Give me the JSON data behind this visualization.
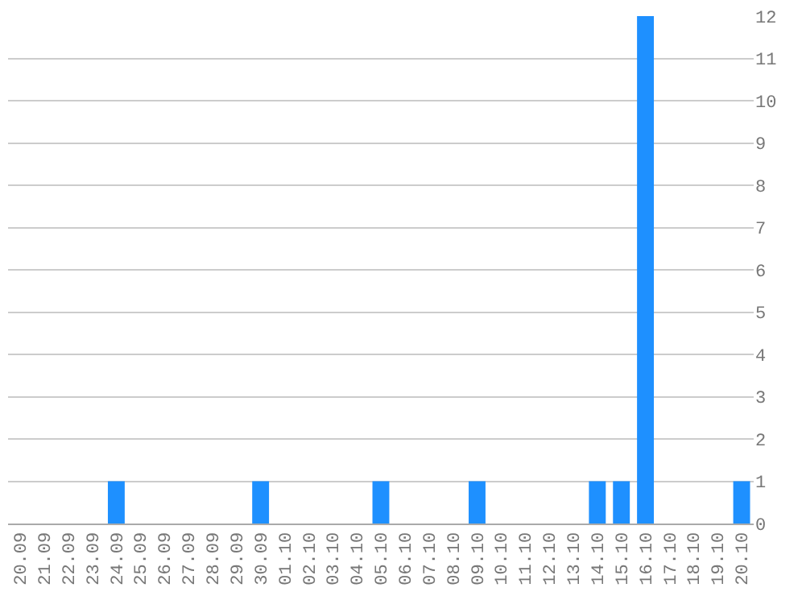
{
  "chart_data": {
    "type": "bar",
    "categories": [
      "20.09",
      "21.09",
      "22.09",
      "23.09",
      "24.09",
      "25.09",
      "26.09",
      "27.09",
      "28.09",
      "29.09",
      "30.09",
      "01.10",
      "02.10",
      "03.10",
      "04.10",
      "05.10",
      "06.10",
      "07.10",
      "08.10",
      "09.10",
      "10.10",
      "11.10",
      "12.10",
      "13.10",
      "14.10",
      "15.10",
      "16.10",
      "17.10",
      "18.10",
      "19.10",
      "20.10"
    ],
    "values": [
      0,
      0,
      0,
      0,
      1,
      0,
      0,
      0,
      0,
      0,
      1,
      0,
      0,
      0,
      0,
      1,
      0,
      0,
      0,
      1,
      0,
      0,
      0,
      0,
      1,
      1,
      12,
      0,
      0,
      0,
      1
    ],
    "color": "#1e90ff",
    "ylim": [
      0,
      12
    ],
    "yticks": [
      0,
      1,
      2,
      3,
      4,
      5,
      6,
      7,
      8,
      9,
      10,
      11,
      12
    ],
    "grid": "y",
    "legend": false
  }
}
